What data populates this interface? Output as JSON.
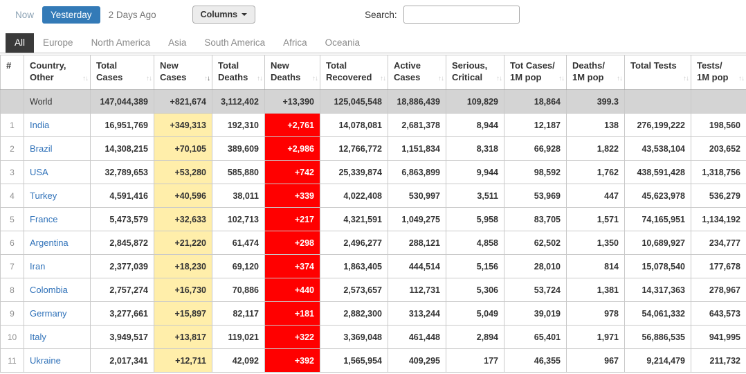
{
  "toolbar": {
    "time_tabs": [
      {
        "label": "Now",
        "active": false
      },
      {
        "label": "Yesterday",
        "active": true
      },
      {
        "label": "2 Days Ago",
        "active": false
      }
    ],
    "columns_button_label": "Columns",
    "search_label": "Search:",
    "search_value": ""
  },
  "continent_tabs": [
    {
      "label": "All",
      "active": true
    },
    {
      "label": "Europe",
      "active": false
    },
    {
      "label": "North America",
      "active": false
    },
    {
      "label": "Asia",
      "active": false
    },
    {
      "label": "South America",
      "active": false
    },
    {
      "label": "Africa",
      "active": false
    },
    {
      "label": "Oceania",
      "active": false
    }
  ],
  "icons": {
    "sort_up": "↑",
    "sort_down": "↓",
    "caret_down": "▼"
  },
  "colors": {
    "accent_blue": "#337ab7",
    "new_cases_bg": "#FFEEAA",
    "new_deaths_bg": "#FF0000",
    "world_row_bg": "#D4D4D4",
    "link_blue": "#3072B9"
  },
  "table": {
    "headers": [
      {
        "label": "#",
        "sortable": false
      },
      {
        "label": "Country, Other",
        "sortable": true
      },
      {
        "label": "Total Cases",
        "sortable": true
      },
      {
        "label": "New Cases",
        "sortable": true,
        "sorted": "desc"
      },
      {
        "label": "Total Deaths",
        "sortable": true
      },
      {
        "label": "New Deaths",
        "sortable": true
      },
      {
        "label": "Total Recovered",
        "sortable": true
      },
      {
        "label": "Active Cases",
        "sortable": true
      },
      {
        "label": "Serious, Critical",
        "sortable": true
      },
      {
        "label": "Tot Cases/ 1M pop",
        "sortable": true
      },
      {
        "label": "Deaths/ 1M pop",
        "sortable": true
      },
      {
        "label": "Total Tests",
        "sortable": true
      },
      {
        "label": "Tests/ 1M pop",
        "sortable": true
      }
    ],
    "world_row": {
      "rank": "",
      "country": "World",
      "total_cases": "147,044,389",
      "new_cases": "+821,674",
      "total_deaths": "3,112,402",
      "new_deaths": "+13,390",
      "total_recovered": "125,045,548",
      "active_cases": "18,886,439",
      "serious_critical": "109,829",
      "cases_per_1m": "18,864",
      "deaths_per_1m": "399.3",
      "total_tests": "",
      "tests_per_1m": ""
    },
    "rows": [
      {
        "rank": "1",
        "country": "India",
        "total_cases": "16,951,769",
        "new_cases": "+349,313",
        "total_deaths": "192,310",
        "new_deaths": "+2,761",
        "total_recovered": "14,078,081",
        "active_cases": "2,681,378",
        "serious_critical": "8,944",
        "cases_per_1m": "12,187",
        "deaths_per_1m": "138",
        "total_tests": "276,199,222",
        "tests_per_1m": "198,560"
      },
      {
        "rank": "2",
        "country": "Brazil",
        "total_cases": "14,308,215",
        "new_cases": "+70,105",
        "total_deaths": "389,609",
        "new_deaths": "+2,986",
        "total_recovered": "12,766,772",
        "active_cases": "1,151,834",
        "serious_critical": "8,318",
        "cases_per_1m": "66,928",
        "deaths_per_1m": "1,822",
        "total_tests": "43,538,104",
        "tests_per_1m": "203,652"
      },
      {
        "rank": "3",
        "country": "USA",
        "total_cases": "32,789,653",
        "new_cases": "+53,280",
        "total_deaths": "585,880",
        "new_deaths": "+742",
        "total_recovered": "25,339,874",
        "active_cases": "6,863,899",
        "serious_critical": "9,944",
        "cases_per_1m": "98,592",
        "deaths_per_1m": "1,762",
        "total_tests": "438,591,428",
        "tests_per_1m": "1,318,756"
      },
      {
        "rank": "4",
        "country": "Turkey",
        "total_cases": "4,591,416",
        "new_cases": "+40,596",
        "total_deaths": "38,011",
        "new_deaths": "+339",
        "total_recovered": "4,022,408",
        "active_cases": "530,997",
        "serious_critical": "3,511",
        "cases_per_1m": "53,969",
        "deaths_per_1m": "447",
        "total_tests": "45,623,978",
        "tests_per_1m": "536,279"
      },
      {
        "rank": "5",
        "country": "France",
        "total_cases": "5,473,579",
        "new_cases": "+32,633",
        "total_deaths": "102,713",
        "new_deaths": "+217",
        "total_recovered": "4,321,591",
        "active_cases": "1,049,275",
        "serious_critical": "5,958",
        "cases_per_1m": "83,705",
        "deaths_per_1m": "1,571",
        "total_tests": "74,165,951",
        "tests_per_1m": "1,134,192"
      },
      {
        "rank": "6",
        "country": "Argentina",
        "total_cases": "2,845,872",
        "new_cases": "+21,220",
        "total_deaths": "61,474",
        "new_deaths": "+298",
        "total_recovered": "2,496,277",
        "active_cases": "288,121",
        "serious_critical": "4,858",
        "cases_per_1m": "62,502",
        "deaths_per_1m": "1,350",
        "total_tests": "10,689,927",
        "tests_per_1m": "234,777"
      },
      {
        "rank": "7",
        "country": "Iran",
        "total_cases": "2,377,039",
        "new_cases": "+18,230",
        "total_deaths": "69,120",
        "new_deaths": "+374",
        "total_recovered": "1,863,405",
        "active_cases": "444,514",
        "serious_critical": "5,156",
        "cases_per_1m": "28,010",
        "deaths_per_1m": "814",
        "total_tests": "15,078,540",
        "tests_per_1m": "177,678"
      },
      {
        "rank": "8",
        "country": "Colombia",
        "total_cases": "2,757,274",
        "new_cases": "+16,730",
        "total_deaths": "70,886",
        "new_deaths": "+440",
        "total_recovered": "2,573,657",
        "active_cases": "112,731",
        "serious_critical": "5,306",
        "cases_per_1m": "53,724",
        "deaths_per_1m": "1,381",
        "total_tests": "14,317,363",
        "tests_per_1m": "278,967"
      },
      {
        "rank": "9",
        "country": "Germany",
        "total_cases": "3,277,661",
        "new_cases": "+15,897",
        "total_deaths": "82,117",
        "new_deaths": "+181",
        "total_recovered": "2,882,300",
        "active_cases": "313,244",
        "serious_critical": "5,049",
        "cases_per_1m": "39,019",
        "deaths_per_1m": "978",
        "total_tests": "54,061,332",
        "tests_per_1m": "643,573"
      },
      {
        "rank": "10",
        "country": "Italy",
        "total_cases": "3,949,517",
        "new_cases": "+13,817",
        "total_deaths": "119,021",
        "new_deaths": "+322",
        "total_recovered": "3,369,048",
        "active_cases": "461,448",
        "serious_critical": "2,894",
        "cases_per_1m": "65,401",
        "deaths_per_1m": "1,971",
        "total_tests": "56,886,535",
        "tests_per_1m": "941,995"
      },
      {
        "rank": "11",
        "country": "Ukraine",
        "total_cases": "2,017,341",
        "new_cases": "+12,711",
        "total_deaths": "42,092",
        "new_deaths": "+392",
        "total_recovered": "1,565,954",
        "active_cases": "409,295",
        "serious_critical": "177",
        "cases_per_1m": "46,355",
        "deaths_per_1m": "967",
        "total_tests": "9,214,479",
        "tests_per_1m": "211,732"
      }
    ]
  }
}
